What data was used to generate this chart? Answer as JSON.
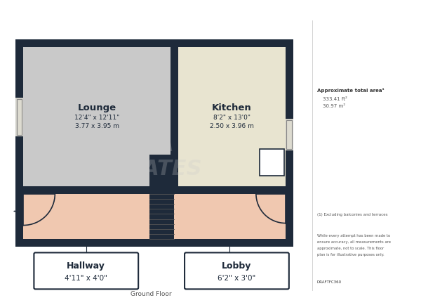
{
  "wall_color": "#1e2a3a",
  "lounge_color": "#c9c9c9",
  "kitchen_color": "#e8e4d0",
  "hallway_lobby_color": "#f0c8b0",
  "title": "Ground Floor",
  "lounge_label": "Lounge",
  "lounge_dim1": "12'4\" x 12'11\"",
  "lounge_dim2": "3.77 x 3.95 m",
  "kitchen_label": "Kitchen",
  "kitchen_dim1": "8'2\" x 13'0\"",
  "kitchen_dim2": "2.50 x 3.96 m",
  "hallway_label": "Hallway",
  "hallway_dim": "4'11\" x 4'0\"",
  "lobby_label": "Lobby",
  "lobby_dim": "6'2\" x 3'0\"",
  "approx_area_label": "Approximate total area¹",
  "approx_area_ft": "333.41 ft²",
  "approx_area_m": "30.97 m²",
  "footnote1": "(1) Excluding balconies and terraces",
  "footnote2": "While every attempt has been made to\nensure accuracy, all measurements are\napproximate, not to scale. This floor\nplan is for illustrative purposes only.",
  "ref": "DRAFTFC360"
}
